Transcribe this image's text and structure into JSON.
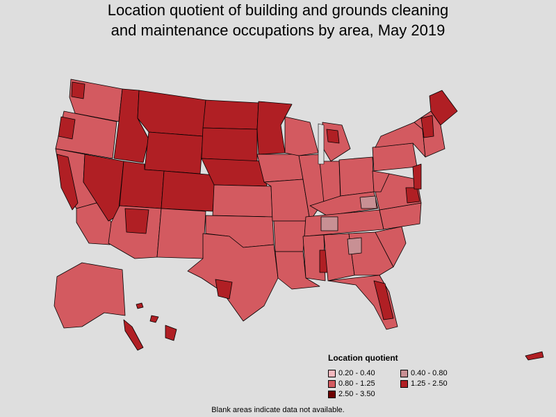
{
  "title_line1": "Location quotient of building and grounds cleaning",
  "title_line2": "and maintenance occupations by area, May 2019",
  "legend": {
    "title": "Location quotient",
    "items": [
      {
        "label": "0.20 - 0.40",
        "color": "#f4b7bd"
      },
      {
        "label": "0.40 - 0.80",
        "color": "#c89094"
      },
      {
        "label": "0.80 - 1.25",
        "color": "#d35a60"
      },
      {
        "label": "1.25 - 2.50",
        "color": "#b01f24"
      },
      {
        "label": "2.50 - 3.50",
        "color": "#6d0000"
      }
    ]
  },
  "footnote": "Blank areas indicate data not available.",
  "colors": {
    "background": "#dedede",
    "border": "#000000"
  }
}
